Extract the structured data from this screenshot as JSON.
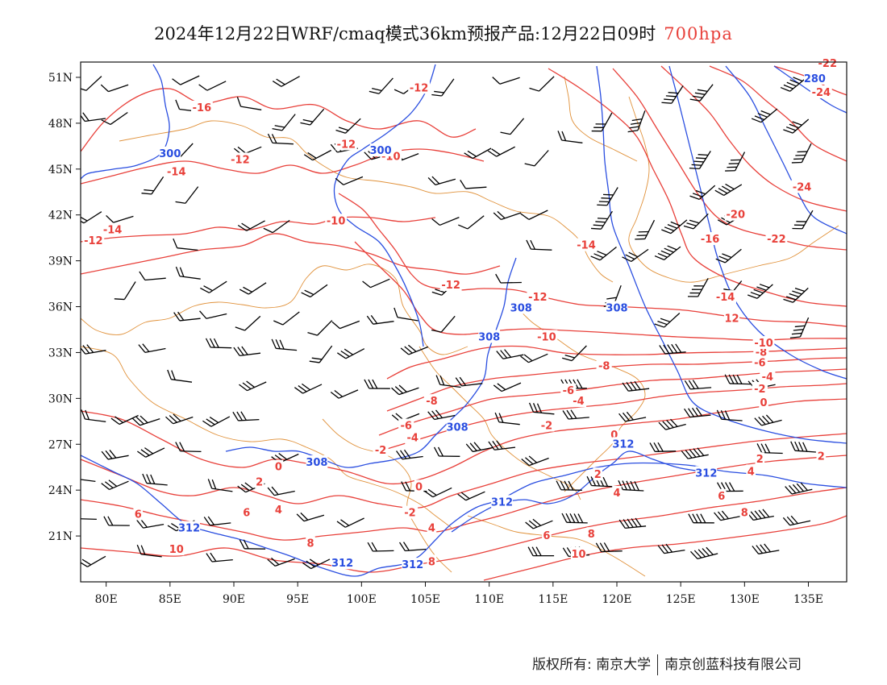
{
  "title": {
    "main": "2024年12月22日WRF/cmaq模式36km预报产品:12月22日09时",
    "level": "700hpa"
  },
  "colors": {
    "temperature": "#e8403a",
    "geopotential": "#2a4ee0",
    "boundary": "#e0913a",
    "wind": "#000000"
  },
  "axes": {
    "lon_range": [
      78,
      138
    ],
    "lat_range": [
      18,
      52
    ],
    "lon_ticks": [
      {
        "value": 80,
        "label": "80E"
      },
      {
        "value": 85,
        "label": "85E"
      },
      {
        "value": 90,
        "label": "90E"
      },
      {
        "value": 95,
        "label": "95E"
      },
      {
        "value": 100,
        "label": "100E"
      },
      {
        "value": 105,
        "label": "105E"
      },
      {
        "value": 110,
        "label": "110E"
      },
      {
        "value": 115,
        "label": "115E"
      },
      {
        "value": 120,
        "label": "120E"
      },
      {
        "value": 125,
        "label": "125E"
      },
      {
        "value": 130,
        "label": "130E"
      },
      {
        "value": 135,
        "label": "135E"
      }
    ],
    "lat_ticks": [
      {
        "value": 51,
        "label": "51N"
      },
      {
        "value": 48,
        "label": "48N"
      },
      {
        "value": 45,
        "label": "45N"
      },
      {
        "value": 42,
        "label": "42N"
      },
      {
        "value": 39,
        "label": "39N"
      },
      {
        "value": 36,
        "label": "36N"
      },
      {
        "value": 33,
        "label": "33N"
      },
      {
        "value": 30,
        "label": "30N"
      },
      {
        "value": 27,
        "label": "27N"
      },
      {
        "value": 24,
        "label": "24N"
      },
      {
        "value": 21,
        "label": "21N"
      }
    ]
  },
  "temperature_labels": [
    {
      "text": "-16",
      "lon": 87.5,
      "lat": 49.0
    },
    {
      "text": "-14",
      "lon": 85.5,
      "lat": 44.8
    },
    {
      "text": "-14",
      "lon": 80.5,
      "lat": 41.0
    },
    {
      "text": "-12",
      "lon": 79.0,
      "lat": 40.3
    },
    {
      "text": "-12",
      "lon": 90.5,
      "lat": 45.6
    },
    {
      "text": "-12",
      "lon": 98.8,
      "lat": 46.6
    },
    {
      "text": "-12",
      "lon": 104.5,
      "lat": 50.3
    },
    {
      "text": "-10",
      "lon": 98.0,
      "lat": 41.6
    },
    {
      "text": "-10",
      "lon": 102.3,
      "lat": 45.8
    },
    {
      "text": "-12",
      "lon": 107.0,
      "lat": 37.4
    },
    {
      "text": "-12",
      "lon": 113.8,
      "lat": 36.6
    },
    {
      "text": "-14",
      "lon": 117.6,
      "lat": 40.0
    },
    {
      "text": "-10",
      "lon": 114.5,
      "lat": 34.0
    },
    {
      "text": "-8",
      "lon": 119.0,
      "lat": 32.1
    },
    {
      "text": "-6",
      "lon": 116.2,
      "lat": 30.5
    },
    {
      "text": "-4",
      "lon": 117.0,
      "lat": 29.8
    },
    {
      "text": "-2",
      "lon": 114.5,
      "lat": 28.2
    },
    {
      "text": "0",
      "lon": 119.8,
      "lat": 27.6
    },
    {
      "text": "-8",
      "lon": 105.5,
      "lat": 29.8
    },
    {
      "text": "-6",
      "lon": 103.5,
      "lat": 28.2
    },
    {
      "text": "-4",
      "lon": 104.0,
      "lat": 27.4
    },
    {
      "text": "-2",
      "lon": 101.5,
      "lat": 26.6
    },
    {
      "text": "0",
      "lon": 93.5,
      "lat": 25.5
    },
    {
      "text": "2",
      "lon": 92.0,
      "lat": 24.5
    },
    {
      "text": "0",
      "lon": 104.5,
      "lat": 24.2
    },
    {
      "text": "-2",
      "lon": 103.8,
      "lat": 22.5
    },
    {
      "text": "4",
      "lon": 105.5,
      "lat": 21.5
    },
    {
      "text": "2",
      "lon": 118.5,
      "lat": 25.0
    },
    {
      "text": "4",
      "lon": 120.0,
      "lat": 23.8
    },
    {
      "text": "6",
      "lon": 91.0,
      "lat": 22.5
    },
    {
      "text": "4",
      "lon": 93.5,
      "lat": 22.7
    },
    {
      "text": "6",
      "lon": 82.5,
      "lat": 22.4
    },
    {
      "text": "8",
      "lon": 96.0,
      "lat": 20.5
    },
    {
      "text": "10",
      "lon": 85.5,
      "lat": 20.1
    },
    {
      "text": "8",
      "lon": 105.5,
      "lat": 19.3
    },
    {
      "text": "6",
      "lon": 114.5,
      "lat": 21.0
    },
    {
      "text": "8",
      "lon": 118.0,
      "lat": 21.1
    },
    {
      "text": "10",
      "lon": 117.0,
      "lat": 19.8
    },
    {
      "text": "8",
      "lon": 130.0,
      "lat": 22.5
    },
    {
      "text": "6",
      "lon": 128.2,
      "lat": 23.6
    },
    {
      "text": "4",
      "lon": 130.5,
      "lat": 25.2
    },
    {
      "text": "2",
      "lon": 131.2,
      "lat": 26.0
    },
    {
      "text": "2",
      "lon": 136.0,
      "lat": 26.2
    },
    {
      "text": "0",
      "lon": 131.5,
      "lat": 29.7
    },
    {
      "text": "-2",
      "lon": 131.2,
      "lat": 30.6
    },
    {
      "text": "-4",
      "lon": 131.8,
      "lat": 31.4
    },
    {
      "text": "-6",
      "lon": 131.2,
      "lat": 32.3
    },
    {
      "text": "-8",
      "lon": 131.3,
      "lat": 33.0
    },
    {
      "text": "-10",
      "lon": 131.5,
      "lat": 33.6
    },
    {
      "text": "12",
      "lon": 129.0,
      "lat": 35.2
    },
    {
      "text": "-14",
      "lon": 128.5,
      "lat": 36.6
    },
    {
      "text": "-16",
      "lon": 127.3,
      "lat": 40.4
    },
    {
      "text": "-20",
      "lon": 129.3,
      "lat": 42.0
    },
    {
      "text": "-22",
      "lon": 132.5,
      "lat": 40.4
    },
    {
      "text": "-24",
      "lon": 134.5,
      "lat": 43.8
    },
    {
      "text": "-24",
      "lon": 136.0,
      "lat": 50.0
    },
    {
      "text": "-22",
      "lon": 136.5,
      "lat": 51.9
    }
  ],
  "height_labels": [
    {
      "text": "300",
      "lon": 85.0,
      "lat": 46.0
    },
    {
      "text": "300",
      "lon": 101.5,
      "lat": 46.2
    },
    {
      "text": "308",
      "lon": 112.5,
      "lat": 35.9
    },
    {
      "text": "308",
      "lon": 110.0,
      "lat": 34.0
    },
    {
      "text": "308",
      "lon": 120.0,
      "lat": 35.9
    },
    {
      "text": "308",
      "lon": 107.5,
      "lat": 28.1
    },
    {
      "text": "308",
      "lon": 96.5,
      "lat": 25.8
    },
    {
      "text": "312",
      "lon": 120.5,
      "lat": 27.0
    },
    {
      "text": "312",
      "lon": 127.0,
      "lat": 25.1
    },
    {
      "text": "312",
      "lon": 111.0,
      "lat": 23.2
    },
    {
      "text": "312",
      "lon": 86.5,
      "lat": 21.5
    },
    {
      "text": "312",
      "lon": 98.5,
      "lat": 19.2
    },
    {
      "text": "312",
      "lon": 104.0,
      "lat": 19.1
    },
    {
      "text": "280",
      "lon": 135.5,
      "lat": 50.9
    }
  ],
  "footer": {
    "left": "版权所有: 南京大学",
    "right": "南京创蓝科技有限公司"
  }
}
